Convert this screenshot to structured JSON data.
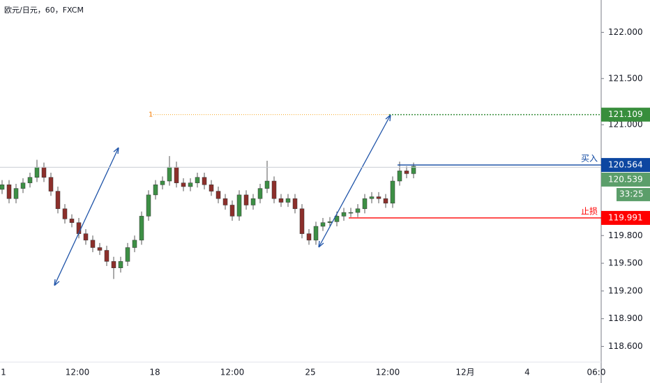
{
  "chart_data": {
    "type": "candlestick",
    "title": "欧元/日元，60，FXCM",
    "open": [
      120.3,
      120.35,
      120.2,
      120.31,
      120.37,
      120.43,
      120.54,
      120.43,
      120.28,
      120.09,
      119.98,
      119.94,
      119.82,
      119.75,
      119.67,
      119.64,
      119.52,
      119.45,
      119.52,
      119.67,
      119.75,
      120.01,
      120.24,
      120.35,
      120.39,
      120.54,
      120.37,
      120.33,
      120.37,
      120.43,
      120.35,
      120.28,
      120.2,
      120.13,
      120.01,
      120.24,
      120.13,
      120.2,
      120.31,
      120.39,
      120.2,
      120.16,
      120.2,
      120.09,
      119.82,
      119.75,
      119.9,
      119.94,
      119.95,
      120.01,
      120.05,
      120.05,
      120.09,
      120.2,
      120.22,
      120.2,
      120.15,
      120.39,
      120.5,
      120.47
    ],
    "high": [
      120.4,
      120.4,
      120.36,
      120.42,
      120.48,
      120.62,
      120.59,
      120.48,
      120.33,
      120.14,
      120.03,
      119.99,
      119.87,
      119.8,
      119.72,
      119.69,
      119.57,
      119.57,
      119.72,
      119.8,
      120.06,
      120.29,
      120.4,
      120.44,
      120.66,
      120.6,
      120.42,
      120.42,
      120.48,
      120.48,
      120.4,
      120.33,
      120.25,
      120.18,
      120.29,
      120.29,
      120.25,
      120.36,
      120.61,
      120.44,
      120.25,
      120.25,
      120.25,
      120.14,
      119.87,
      119.95,
      119.99,
      120.0,
      120.06,
      120.1,
      120.1,
      120.14,
      120.25,
      120.27,
      120.27,
      120.25,
      120.44,
      120.6,
      120.55,
      120.59
    ],
    "low": [
      120.25,
      120.15,
      120.15,
      120.26,
      120.32,
      120.38,
      120.38,
      120.23,
      120.04,
      119.93,
      119.89,
      119.77,
      119.7,
      119.62,
      119.59,
      119.47,
      119.33,
      119.4,
      119.47,
      119.62,
      119.7,
      119.96,
      120.19,
      120.3,
      120.34,
      120.32,
      120.28,
      120.28,
      120.32,
      120.3,
      120.23,
      120.15,
      120.08,
      119.96,
      119.96,
      120.08,
      120.08,
      120.15,
      120.26,
      120.15,
      120.11,
      120.11,
      120.04,
      119.77,
      119.7,
      119.7,
      119.85,
      119.89,
      119.9,
      119.96,
      120.0,
      120.0,
      120.04,
      120.15,
      120.15,
      120.1,
      120.1,
      120.34,
      120.42,
      120.42
    ],
    "close": [
      120.35,
      120.2,
      120.31,
      120.37,
      120.43,
      120.54,
      120.43,
      120.28,
      120.09,
      119.98,
      119.94,
      119.82,
      119.75,
      119.67,
      119.64,
      119.52,
      119.45,
      119.52,
      119.67,
      119.75,
      120.01,
      120.24,
      120.35,
      120.39,
      120.54,
      120.37,
      120.33,
      120.37,
      120.43,
      120.35,
      120.28,
      120.2,
      120.13,
      120.01,
      120.24,
      120.13,
      120.2,
      120.31,
      120.39,
      120.2,
      120.16,
      120.2,
      120.09,
      119.82,
      119.75,
      119.9,
      119.94,
      119.95,
      120.01,
      120.05,
      120.05,
      120.09,
      120.2,
      120.22,
      120.2,
      120.15,
      120.39,
      120.5,
      120.47,
      120.55
    ],
    "up_color": "#3d8f45",
    "down_color": "#8c2f2b",
    "x_labels": [
      "1",
      "12:00",
      "18",
      "12:00",
      "25",
      "12:00",
      "12月",
      "4",
      "06:0"
    ],
    "ylim": [
      118.43,
      122.35
    ],
    "yticks": [
      {
        "value": 122,
        "label": "122.000"
      },
      {
        "value": 121.5,
        "label": "121.500"
      },
      {
        "value": 121,
        "label": "121.000"
      },
      {
        "value": 119.8,
        "label": "119.800"
      },
      {
        "value": 119.5,
        "label": "119.500"
      },
      {
        "value": 119.2,
        "label": "119.200"
      },
      {
        "value": 118.9,
        "label": "118.900"
      },
      {
        "value": 118.6,
        "label": "118.600"
      }
    ],
    "target": {
      "value": 121.109,
      "color": "#388e3c",
      "annotation": "1"
    },
    "buy": {
      "name": "买入",
      "value": 120.564,
      "color": "#0d47a1"
    },
    "stop": {
      "name": "止损",
      "value": 119.991,
      "color": "#ff0000"
    },
    "current": {
      "value": 120.539,
      "countdown": "33:25",
      "color": "#5b9e6a"
    }
  }
}
